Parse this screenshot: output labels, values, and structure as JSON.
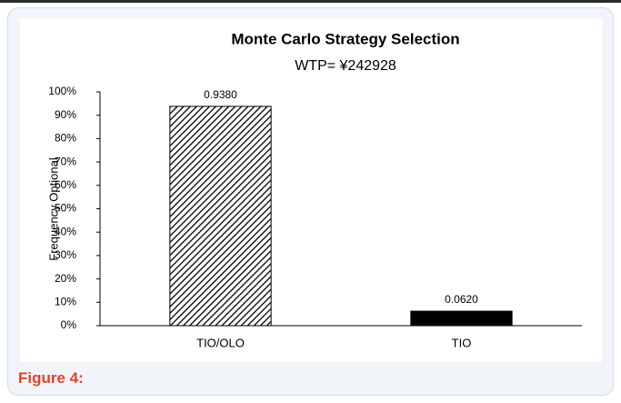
{
  "chart_data": {
    "type": "bar",
    "title": "Monte Carlo Strategy Selection",
    "subtitle": "WTP= ¥242928",
    "ylabel": "Frequency Optional",
    "categories": [
      "TIO/OLO",
      "TIO"
    ],
    "values": [
      93.8,
      6.2
    ],
    "value_labels": [
      "0.9380",
      "0.0620"
    ],
    "colors": [
      "#000000",
      "#000000"
    ],
    "fills": [
      "hatch",
      "solid"
    ],
    "ylim": [
      0,
      100
    ],
    "yticks": [
      {
        "value": 0,
        "label": "0%"
      },
      {
        "value": 10,
        "label": "10%"
      },
      {
        "value": 20,
        "label": "20%"
      },
      {
        "value": 30,
        "label": "30%"
      },
      {
        "value": 40,
        "label": "40%"
      },
      {
        "value": 50,
        "label": "50%"
      },
      {
        "value": 60,
        "label": "60%"
      },
      {
        "value": 70,
        "label": "70%"
      },
      {
        "value": 80,
        "label": "80%"
      },
      {
        "value": 90,
        "label": "90%"
      },
      {
        "value": 100,
        "label": "100%"
      }
    ],
    "grid": false
  },
  "caption": "Figure 4:"
}
